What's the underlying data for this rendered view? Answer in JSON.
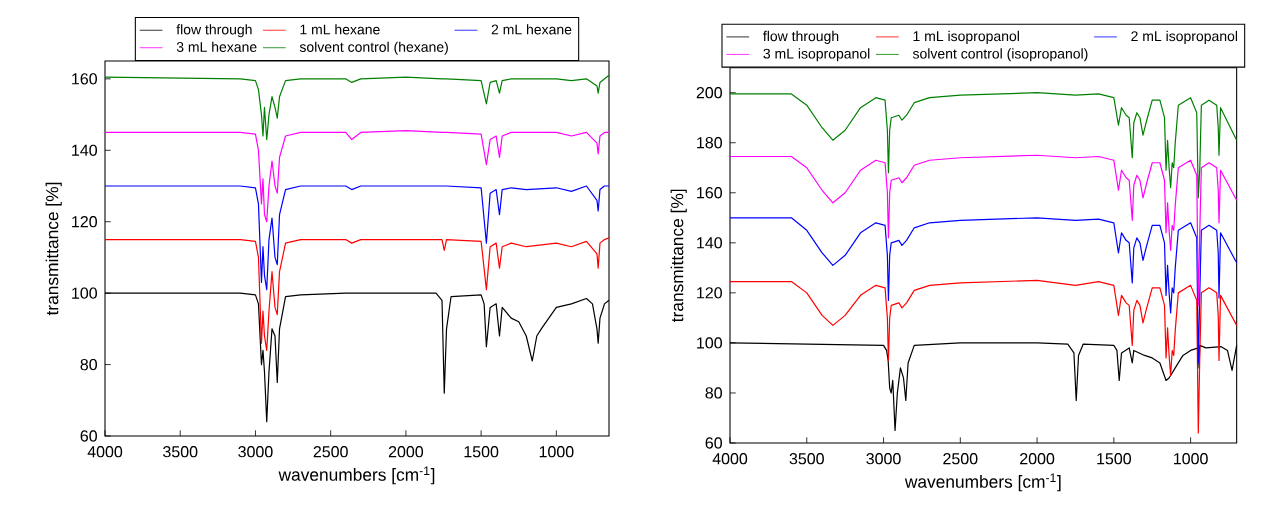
{
  "chart_data": [
    {
      "type": "line",
      "xlabel": "wavenumbers [cm$^{-1}$]",
      "ylabel": "transmittance [%]",
      "xlim": [
        4000,
        650
      ],
      "ylim": [
        60,
        165
      ],
      "xticks": [
        4000,
        3500,
        3000,
        2500,
        2000,
        1500,
        1000
      ],
      "yticks": [
        60,
        80,
        100,
        120,
        140,
        160
      ],
      "legend": "top",
      "x": [
        4000,
        3100,
        3000,
        2980,
        2960,
        2950,
        2940,
        2925,
        2910,
        2890,
        2870,
        2855,
        2840,
        2800,
        2700,
        2400,
        2360,
        2300,
        2000,
        1760,
        1745,
        1730,
        1500,
        1465,
        1440,
        1400,
        1378,
        1360,
        1300,
        1200,
        1000,
        900,
        800,
        730,
        722,
        710,
        680,
        650
      ],
      "series": [
        {
          "name": "flow through",
          "color": "#000000",
          "x": [
            4000,
            3100,
            3000,
            2980,
            2960,
            2950,
            2940,
            2925,
            2910,
            2890,
            2870,
            2855,
            2840,
            2800,
            2700,
            2400,
            1800,
            1760,
            1745,
            1730,
            1700,
            1500,
            1480,
            1465,
            1440,
            1400,
            1378,
            1360,
            1300,
            1250,
            1200,
            1160,
            1130,
            1100,
            1000,
            900,
            800,
            760,
            730,
            722,
            710,
            680,
            650
          ],
          "values": [
            100,
            100,
            99.5,
            97,
            80,
            84,
            78,
            64,
            78,
            90,
            88,
            75,
            90,
            99,
            99.5,
            100,
            100,
            98,
            72,
            90,
            99,
            99.5,
            97,
            85,
            96,
            97,
            88,
            96,
            93,
            92,
            88,
            81,
            88,
            90,
            96,
            97,
            98.5,
            97,
            90,
            86,
            93,
            97,
            98
          ]
        },
        {
          "name": "1 mL hexane",
          "color": "#ff0000",
          "values": [
            115,
            115,
            114.5,
            110,
            86,
            95,
            88,
            84,
            95,
            106,
            96,
            94,
            106,
            114,
            115,
            115,
            114,
            115,
            115,
            115,
            112,
            115,
            114.5,
            101,
            113,
            114,
            107,
            113,
            114,
            113,
            114,
            113,
            114.5,
            111,
            107,
            114,
            115,
            115.5
          ]
        },
        {
          "name": "2 mL hexane",
          "color": "#0000ff",
          "values": [
            130,
            130,
            129.5,
            125,
            103,
            113,
            105,
            101,
            115,
            121,
            110,
            108,
            122,
            129,
            130,
            130,
            129,
            130,
            130,
            130,
            130,
            130,
            129.5,
            114,
            128,
            129,
            122,
            129,
            129.5,
            129,
            129.5,
            128.5,
            130,
            126,
            123,
            129,
            130,
            130
          ]
        },
        {
          "name": "3 mL hexane",
          "color": "#ff00ff",
          "values": [
            145,
            145,
            144.5,
            140,
            125,
            132,
            122,
            120,
            130,
            137,
            130,
            128,
            138,
            144,
            145,
            145,
            143,
            145,
            145.5,
            145,
            145,
            145,
            144.5,
            136,
            143,
            144,
            138,
            144,
            145,
            145,
            145,
            144,
            145,
            142,
            139,
            144,
            145,
            145
          ]
        },
        {
          "name": "solvent control (hexane)",
          "color": "#008000",
          "values": [
            160.5,
            160,
            159.5,
            157,
            150,
            144,
            152,
            143,
            150,
            155,
            152,
            149,
            155,
            159.5,
            160,
            160,
            159,
            160,
            160.5,
            160,
            160,
            160,
            159.5,
            153,
            159,
            159.5,
            156,
            159.5,
            160,
            160,
            160,
            159.5,
            160,
            158,
            156,
            159,
            160,
            161
          ]
        }
      ]
    },
    {
      "type": "line",
      "xlabel": "wavenumbers [cm$^{-1}$]",
      "ylabel": "transmittance [%]",
      "xlim": [
        4000,
        700
      ],
      "ylim": [
        60,
        210
      ],
      "xticks": [
        4000,
        3500,
        3000,
        2500,
        2000,
        1500,
        1000
      ],
      "yticks": [
        60,
        80,
        100,
        120,
        140,
        160,
        180,
        200
      ],
      "legend": "top",
      "x": [
        4000,
        3600,
        3500,
        3400,
        3330,
        3250,
        3150,
        3050,
        2990,
        2975,
        2968,
        2960,
        2950,
        2900,
        2880,
        2850,
        2800,
        2700,
        2500,
        2000,
        1750,
        1600,
        1500,
        1470,
        1450,
        1420,
        1400,
        1380,
        1370,
        1350,
        1330,
        1310,
        1290,
        1250,
        1200,
        1170,
        1160,
        1150,
        1140,
        1130,
        1120,
        1110,
        1100,
        1080,
        1000,
        960,
        950,
        940,
        930,
        880,
        830,
        820,
        815,
        805,
        700
      ],
      "series": [
        {
          "name": "flow through",
          "color": "#000000",
          "x": [
            4000,
            3000,
            2980,
            2970,
            2960,
            2950,
            2940,
            2925,
            2910,
            2890,
            2870,
            2855,
            2840,
            2800,
            2500,
            2000,
            1800,
            1760,
            1745,
            1730,
            1700,
            1500,
            1480,
            1465,
            1450,
            1400,
            1380,
            1370,
            1300,
            1250,
            1200,
            1160,
            1140,
            1100,
            1050,
            1000,
            950,
            945,
            940,
            900,
            800,
            760,
            730,
            715,
            700
          ],
          "values": [
            100,
            99,
            97,
            93,
            82,
            80,
            85,
            65,
            80,
            90,
            86,
            77,
            92,
            99,
            100,
            100,
            99.5,
            96,
            77,
            95,
            99.5,
            99,
            97,
            85,
            96,
            98,
            92,
            97,
            95,
            94,
            92,
            85,
            86,
            90,
            95,
            97,
            98,
            90,
            99,
            98,
            98.5,
            97,
            89,
            94,
            99
          ]
        },
        {
          "name": "1 mL isopropanol",
          "color": "#ff0000",
          "values": [
            124.5,
            124.5,
            120,
            111,
            107,
            111,
            119,
            123,
            122,
            110,
            93,
            110,
            115,
            116,
            114,
            116,
            121,
            123,
            124,
            125,
            123,
            124.5,
            123,
            111,
            119,
            116,
            115,
            99,
            113,
            117,
            115,
            108,
            113,
            122,
            122,
            115,
            94,
            106,
            95,
            87,
            97,
            95,
            105,
            120,
            123,
            117,
            64,
            95,
            120,
            122,
            120,
            111,
            93,
            119,
            107
          ]
        },
        {
          "name": "2 mL isopropanol",
          "color": "#0000ff",
          "values": [
            150,
            150,
            145,
            136,
            131,
            135,
            144,
            148,
            147,
            135,
            117,
            135,
            140,
            141,
            139,
            141,
            146,
            148,
            149,
            150,
            149,
            149.5,
            148,
            136,
            144,
            141,
            140,
            124,
            138,
            142,
            140,
            133,
            138,
            147,
            147,
            140,
            119,
            131,
            120,
            112,
            122,
            120,
            130,
            145,
            148,
            142,
            92,
            120,
            145,
            147,
            145,
            136,
            118,
            144,
            132
          ]
        },
        {
          "name": "3 mL isopropanol",
          "color": "#ff00ff",
          "values": [
            174.5,
            174.5,
            170,
            161,
            156,
            160,
            169,
            173,
            172,
            160,
            142,
            160,
            165,
            166,
            164,
            166,
            171,
            173,
            174,
            175,
            174,
            174.5,
            173,
            161,
            169,
            166,
            165,
            149,
            163,
            167,
            165,
            158,
            163,
            172,
            172,
            165,
            144,
            156,
            145,
            137,
            147,
            145,
            155,
            170,
            173,
            167,
            115,
            145,
            170,
            172,
            170,
            161,
            148,
            169,
            157
          ]
        },
        {
          "name": "solvent control (isopropanol)",
          "color": "#008000",
          "values": [
            199.5,
            199.5,
            195,
            186,
            181,
            185,
            194,
            198,
            197,
            185,
            168,
            185,
            190,
            191,
            189,
            191,
            196,
            198,
            199,
            200,
            199,
            199.5,
            198,
            187,
            194,
            191,
            190,
            174,
            188,
            192,
            190,
            183,
            188,
            197,
            197,
            190,
            169,
            181,
            170,
            162,
            172,
            170,
            180,
            195,
            198,
            192,
            158,
            170,
            195,
            197,
            195,
            186,
            175,
            194,
            181
          ]
        }
      ]
    }
  ]
}
